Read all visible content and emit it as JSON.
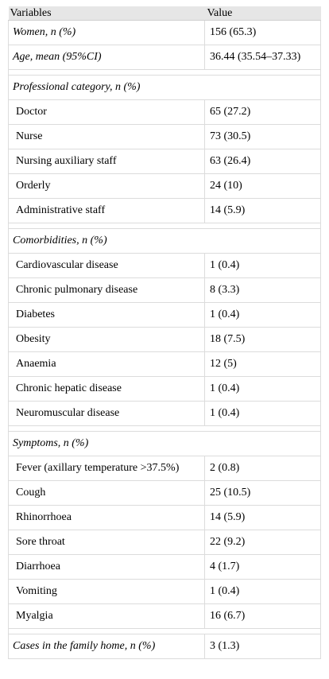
{
  "columns": {
    "variable": "Variables",
    "value": "Value"
  },
  "rows_top": {
    "women": {
      "label": "Women, n (%)",
      "value": "156 (65.3)"
    },
    "age": {
      "label": "Age, mean (95%CI)",
      "value": "36.44 (35.54–37.33)"
    }
  },
  "professional": {
    "heading": "Professional category, n (%)",
    "items": [
      {
        "label": "Doctor",
        "value": "65 (27.2)"
      },
      {
        "label": "Nurse",
        "value": "73 (30.5)"
      },
      {
        "label": "Nursing auxiliary staff",
        "value": "63 (26.4)"
      },
      {
        "label": "Orderly",
        "value": "24 (10)"
      },
      {
        "label": "Administrative staff",
        "value": "14 (5.9)"
      }
    ]
  },
  "comorbidities": {
    "heading": "Comorbidities, n (%)",
    "items": [
      {
        "label": "Cardiovascular disease",
        "value": "1 (0.4)"
      },
      {
        "label": "Chronic pulmonary disease",
        "value": "8 (3.3)"
      },
      {
        "label": "Diabetes",
        "value": "1 (0.4)"
      },
      {
        "label": "Obesity",
        "value": "18 (7.5)"
      },
      {
        "label": "Anaemia",
        "value": "12 (5)"
      },
      {
        "label": "Chronic hepatic disease",
        "value": "1 (0.4)"
      },
      {
        "label": "Neuromuscular disease",
        "value": "1 (0.4)"
      }
    ]
  },
  "symptoms": {
    "heading": "Symptoms, n (%)",
    "items": [
      {
        "label": "Fever (axillary temperature >37.5%)",
        "value": "2 (0.8)"
      },
      {
        "label": "Cough",
        "value": "25 (10.5)"
      },
      {
        "label": "Rhinorrhoea",
        "value": "14 (5.9)"
      },
      {
        "label": "Sore throat",
        "value": "22 (9.2)"
      },
      {
        "label": "Diarrhoea",
        "value": "4 (1.7)"
      },
      {
        "label": "Vomiting",
        "value": "1 (0.4)"
      },
      {
        "label": "Myalgia",
        "value": "16 (6.7)"
      }
    ]
  },
  "family": {
    "label": "Cases in the family home, n (%)",
    "value": "3 (1.3)"
  }
}
